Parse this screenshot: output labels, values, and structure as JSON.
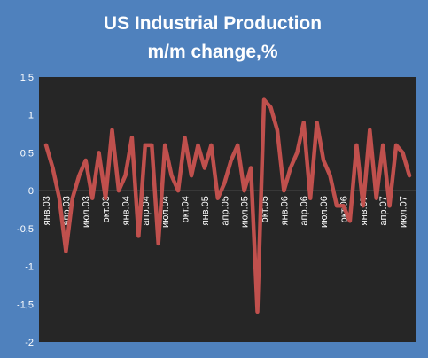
{
  "chart_data": {
    "type": "line",
    "title": "US Industrial Production",
    "subtitle": "m/m change,%",
    "ylim": [
      -2,
      1.5
    ],
    "yticks": [
      -2,
      -1.5,
      -1,
      -0.5,
      0,
      0.5,
      1,
      1.5
    ],
    "ytick_labels": [
      "-2",
      "-1,5",
      "-1",
      "-0,5",
      "0",
      "0,5",
      "1",
      "1,5"
    ],
    "x_tick_labels": [
      "янв.03",
      "апр.03",
      "июл.03",
      "окт.03",
      "янв.04",
      "апр.04",
      "июл.04",
      "окт.04",
      "янв.05",
      "апр.05",
      "июл.05",
      "окт.05",
      "янв.06",
      "апр.06",
      "июл.06",
      "окт.06",
      "янв.07",
      "апр.07",
      "июл.07"
    ],
    "grid": false,
    "legend": "none",
    "colors": {
      "background": "#4f81bd",
      "plot_area": "#262626",
      "line": "#c0504d",
      "text": "#ffffff"
    },
    "series": [
      {
        "values": [
          0.6,
          0.3,
          -0.1,
          -0.8,
          -0.1,
          0.2,
          0.4,
          -0.1,
          0.5,
          -0.1,
          0.8,
          0.0,
          0.2,
          0.7,
          -0.6,
          0.6,
          0.6,
          -0.7,
          0.6,
          0.2,
          0.0,
          0.7,
          0.2,
          0.6,
          0.3,
          0.6,
          -0.1,
          0.1,
          0.4,
          0.6,
          0.0,
          0.3,
          -1.6,
          1.2,
          1.1,
          0.8,
          0.0,
          0.3,
          0.5,
          0.9,
          -0.1,
          0.9,
          0.4,
          0.2,
          -0.2,
          -0.2,
          -0.4,
          0.6,
          -0.2,
          0.8,
          -0.1,
          0.6,
          -0.2,
          0.6,
          0.5,
          0.2
        ]
      }
    ]
  }
}
